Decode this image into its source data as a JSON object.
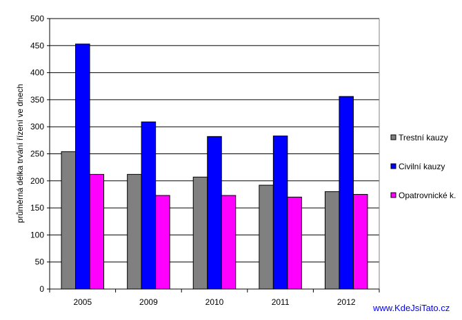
{
  "chart_data": {
    "type": "bar",
    "categories": [
      "2005",
      "2009",
      "2010",
      "2011",
      "2012"
    ],
    "series": [
      {
        "name": "Trestní kauzy",
        "color": "#808080",
        "values": [
          254,
          212,
          207,
          192,
          180
        ]
      },
      {
        "name": "Civilní kauzy",
        "color": "#0000ff",
        "values": [
          453,
          309,
          282,
          283,
          356
        ]
      },
      {
        "name": "Opatrovnické k.",
        "color": "#ff00ff",
        "values": [
          212,
          173,
          173,
          170,
          175
        ]
      }
    ],
    "ylabel": "průměrná délka trvání řízení ve dnech",
    "ylim": [
      0,
      500
    ],
    "yticks": [
      0,
      50,
      100,
      150,
      200,
      250,
      300,
      350,
      400,
      450,
      500
    ],
    "grid": true,
    "legend": "right"
  },
  "watermark": "www.KdeJsiTato.cz"
}
